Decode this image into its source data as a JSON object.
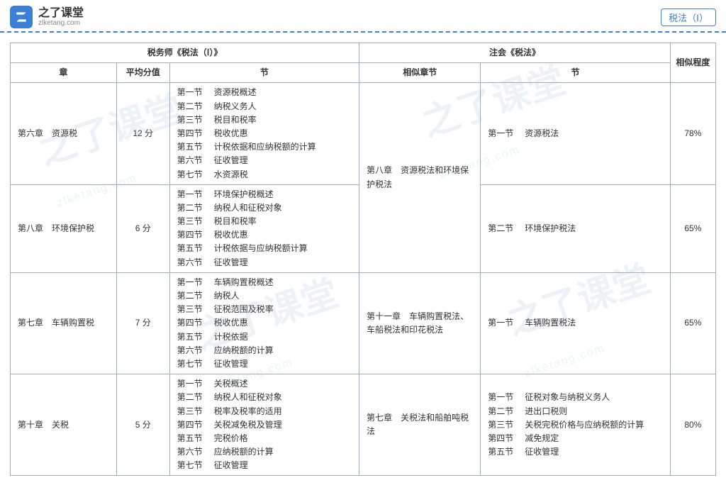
{
  "brand": {
    "title": "之了课堂",
    "sub": "zlketang.com"
  },
  "badge": "税法（Ⅰ）",
  "watermark": {
    "main": "之了课堂",
    "sub": "zlketang.com"
  },
  "headers": {
    "group1": "税务师《税法（Ⅰ）》",
    "group2": "注会《税法》",
    "chapter": "章",
    "avg": "平均分值",
    "section": "节",
    "relChapter": "相似章节",
    "relSection": "节",
    "similarity": "相似程度"
  },
  "rows": [
    {
      "chapter": "第六章　资源税",
      "avg": "12 分",
      "sections": [
        [
          "第一节",
          "资源税概述"
        ],
        [
          "第二节",
          "纳税义务人"
        ],
        [
          "第三节",
          "税目和税率"
        ],
        [
          "第四节",
          "税收优惠"
        ],
        [
          "第五节",
          "计税依据和应纳税额的计算"
        ],
        [
          "第六节",
          "征收管理"
        ],
        [
          "第七节",
          "水资源税"
        ]
      ],
      "relChapterRowspan": 2,
      "relChapter": "第八章　资源税法和环境保护税法",
      "relSections": [
        [
          "第一节",
          "资源税法"
        ]
      ],
      "similarity": "78%"
    },
    {
      "chapter": "第八章　环境保护税",
      "avg": "6 分",
      "sections": [
        [
          "第一节",
          "环境保护税概述"
        ],
        [
          "第二节",
          "纳税人和征税对象"
        ],
        [
          "第三节",
          "税目和税率"
        ],
        [
          "第四节",
          "税收优惠"
        ],
        [
          "第五节",
          "计税依据与应纳税额计算"
        ],
        [
          "第六节",
          "征收管理"
        ]
      ],
      "relSections": [
        [
          "第二节",
          "环境保护税法"
        ]
      ],
      "similarity": "65%"
    },
    {
      "chapter": "第七章　车辆购置税",
      "avg": "7 分",
      "sections": [
        [
          "第一节",
          "车辆购置税概述"
        ],
        [
          "第二节",
          "纳税人"
        ],
        [
          "第三节",
          "征税范围及税率"
        ],
        [
          "第四节",
          "税收优惠"
        ],
        [
          "第五节",
          "计税依据"
        ],
        [
          "第六节",
          "应纳税额的计算"
        ],
        [
          "第七节",
          "征收管理"
        ]
      ],
      "relChapterRowspan": 1,
      "relChapter": "第十一章　车辆购置税法、车船税法和印花税法",
      "relSections": [
        [
          "第一节",
          "车辆购置税法"
        ]
      ],
      "similarity": "65%"
    },
    {
      "chapter": "第十章　关税",
      "avg": "5 分",
      "sections": [
        [
          "第一节",
          "关税概述"
        ],
        [
          "第二节",
          "纳税人和征税对象"
        ],
        [
          "第三节",
          "税率及税率的适用"
        ],
        [
          "第四节",
          "关税减免税及管理"
        ],
        [
          "第五节",
          "完税价格"
        ],
        [
          "第六节",
          "应纳税额的计算"
        ],
        [
          "第七节",
          "征收管理"
        ]
      ],
      "relChapterRowspan": 1,
      "relChapter": "第七章　关税法和船舶吨税法",
      "relSections": [
        [
          "第一节",
          "征税对象与纳税义务人"
        ],
        [
          "第二节",
          "进出口税则"
        ],
        [
          "第三节",
          "关税完税价格与应纳税额的计算"
        ],
        [
          "第四节",
          "减免规定"
        ],
        [
          "第五节",
          "征收管理"
        ]
      ],
      "similarity": "80%"
    }
  ],
  "colWidths": {
    "chapter": "140",
    "avg": "70",
    "section": "250",
    "relChapter": "160",
    "relSection": "250",
    "similarity": "60"
  }
}
